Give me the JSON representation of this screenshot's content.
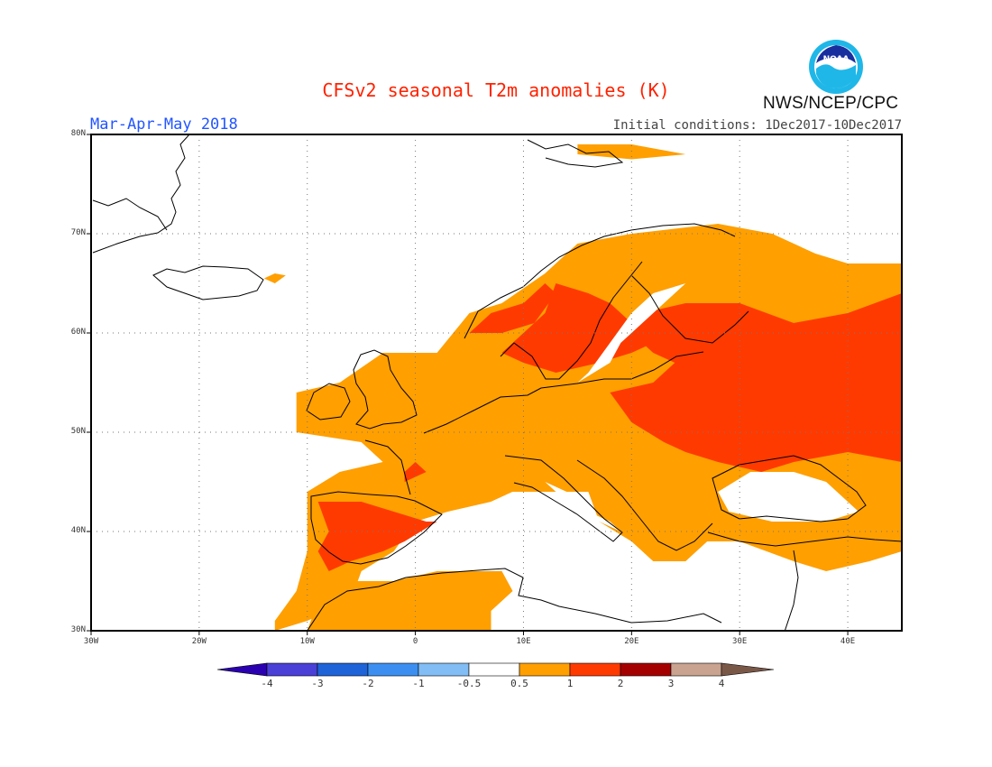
{
  "title": "CFSv2 seasonal T2m anomalies (K)",
  "period": "Mar-Apr-May 2018",
  "initial_conditions": "Initial conditions: 1Dec2017-10Dec2017",
  "agency": "NWS/NCEP/CPC",
  "logo_text": "NOAA",
  "lat_labels": [
    "80N",
    "70N",
    "60N",
    "50N",
    "40N",
    "30N"
  ],
  "lon_labels": [
    "30W",
    "20W",
    "10W",
    "0",
    "10E",
    "20E",
    "30E",
    "40E"
  ],
  "colorbar": {
    "labels": [
      "-4",
      "-3",
      "-2",
      "-1",
      "-0.5",
      "0.5",
      "1",
      "2",
      "3",
      "4"
    ],
    "colors": [
      "#2b00b0",
      "#4a3fd6",
      "#1f63d8",
      "#3c8ff0",
      "#82bdf5",
      "#ffffff",
      "#ff9f00",
      "#ff3a00",
      "#a50000",
      "#c9a38f",
      "#7a5848"
    ]
  },
  "map": {
    "extent": {
      "lon": [
        -30,
        45
      ],
      "lat": [
        30,
        80
      ]
    },
    "anomaly_colors": {
      "warm": "#ff9f00",
      "hot": "#ff3a00"
    },
    "grid": "dotted"
  }
}
